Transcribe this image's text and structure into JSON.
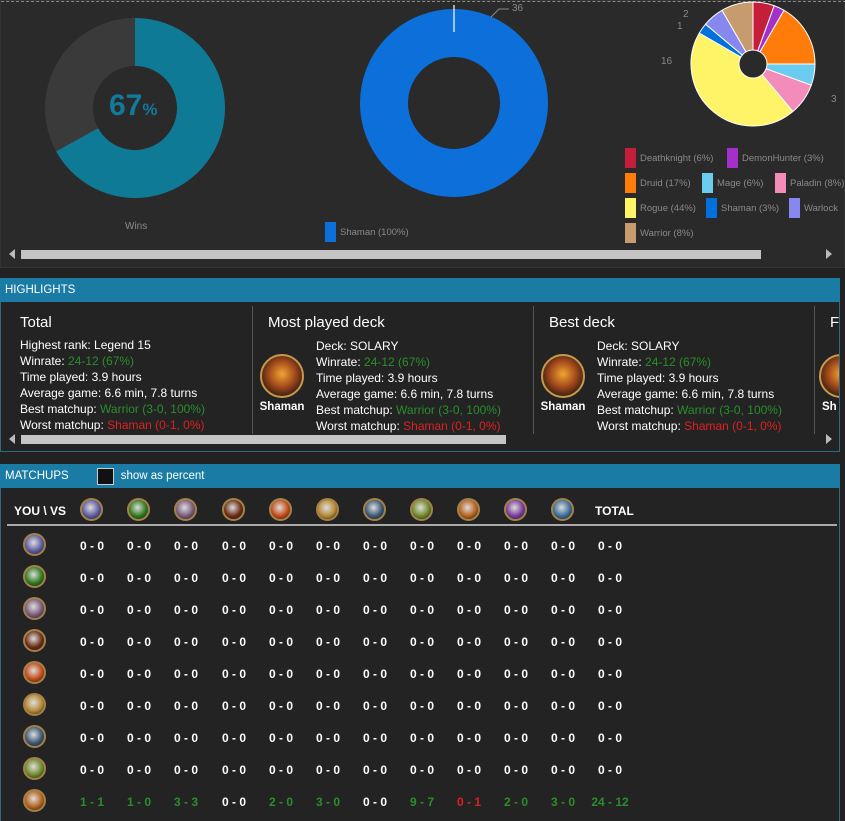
{
  "charts": {
    "wins_donut": {
      "percent_value": "67",
      "percent_sign": "%",
      "fill_fraction": 0.67,
      "legend_label": "Wins",
      "color_win": "#0e7a96",
      "color_loss": "#3a3a3a"
    },
    "deck_donut": {
      "count_label": "36",
      "legend_label": "Shaman (100%)",
      "color": "#0d6fd9"
    },
    "class_pie": {
      "slice_labels": [
        "2",
        "1",
        "16",
        "3"
      ],
      "legend": [
        {
          "label": "Deathknight (6%)",
          "color": "#c41e3a"
        },
        {
          "label": "DemonHunter (3%)",
          "color": "#a330c9"
        },
        {
          "label": "Druid (17%)",
          "color": "#ff7c0a"
        },
        {
          "label": "Mage (6%)",
          "color": "#69ccf0"
        },
        {
          "label": "Paladin (8%)",
          "color": "#f48cba"
        },
        {
          "label": "Rogue (44%)",
          "color": "#fff468"
        },
        {
          "label": "Shaman (3%)",
          "color": "#0070dd"
        },
        {
          "label": "Warlock",
          "color": "#8788ee"
        },
        {
          "label": "Warrior (8%)",
          "color": "#c69b6d"
        }
      ]
    }
  },
  "highlights": {
    "header": "HIGHLIGHTS",
    "total": {
      "title": "Total",
      "rank_label": "Highest rank: ",
      "rank_value": "Legend 15",
      "winrate_label": "Winrate: ",
      "winrate_value": "24-12 (67%)",
      "time_label": "Time played: ",
      "time_value": "3.9 hours",
      "avg_label": "Average game: ",
      "avg_value": "6.6 min, 7.8 turns",
      "best_label": "Best matchup: ",
      "best_value": "Warrior (3-0, 100%)",
      "worst_label": "Worst matchup: ",
      "worst_value": "Shaman (0-1, 0%)"
    },
    "most_played": {
      "title": "Most played deck",
      "class_name": "Shaman",
      "deck_label": "Deck: ",
      "deck_value": "SOLARY",
      "winrate_label": "Winrate: ",
      "winrate_value": "24-12 (67%)",
      "time_label": "Time played: ",
      "time_value": "3.9 hours",
      "avg_label": "Average game: ",
      "avg_value": "6.6 min, 7.8 turns",
      "best_label": "Best matchup: ",
      "best_value": "Warrior (3-0, 100%)",
      "worst_label": "Worst matchup: ",
      "worst_value": "Shaman (0-1, 0%)"
    },
    "best_deck": {
      "title": "Best deck",
      "class_name": "Shaman",
      "deck_label": "Deck: ",
      "deck_value": "SOLARY",
      "winrate_label": "Winrate: ",
      "winrate_value": "24-12 (67%)",
      "time_label": "Time played: ",
      "time_value": "3.9 hours",
      "avg_label": "Average game: ",
      "avg_value": "6.6 min, 7.8 turns",
      "best_label": "Best matchup: ",
      "best_value": "Warrior (3-0, 100%)",
      "worst_label": "Worst matchup: ",
      "worst_value": "Shaman (0-1, 0%)"
    },
    "cut_column": {
      "title": "F",
      "class_name": "Sh"
    }
  },
  "matchups": {
    "header": "MATCHUPS",
    "show_as_percent": "show as percent",
    "corner_label": "YOU \\ VS",
    "total_label": "TOTAL",
    "class_icons": [
      {
        "name": "demonhunter-icon",
        "color": "#5c5b9e"
      },
      {
        "name": "druid-icon",
        "color": "#2f7a1e"
      },
      {
        "name": "hunter-icon",
        "color": "#7a5b7a"
      },
      {
        "name": "mage-icon",
        "color": "#6b2d14"
      },
      {
        "name": "paladin-icon",
        "color": "#c44b18"
      },
      {
        "name": "priest-icon",
        "color": "#b68b36"
      },
      {
        "name": "rogue-icon",
        "color": "#3a5874"
      },
      {
        "name": "shaman-icon",
        "color": "#6d8a2a"
      },
      {
        "name": "warlock-icon",
        "color": "#b5621c"
      },
      {
        "name": "warrior-icon",
        "color": "#7a3a9a"
      },
      {
        "name": "deathknight-icon",
        "color": "#3a6c96"
      }
    ],
    "row_icons": [
      {
        "name": "demonhunter-icon",
        "color": "#5c5b9e"
      },
      {
        "name": "druid-icon",
        "color": "#2f7a1e"
      },
      {
        "name": "hunter-icon",
        "color": "#7a5b7a"
      },
      {
        "name": "mage-icon",
        "color": "#6b2d14"
      },
      {
        "name": "paladin-icon",
        "color": "#c44b18"
      },
      {
        "name": "priest-icon",
        "color": "#b68b36"
      },
      {
        "name": "rogue-icon",
        "color": "#3a5874"
      },
      {
        "name": "shaman-icon",
        "color": "#6d8a2a"
      },
      {
        "name": "warlock-icon",
        "color": "#b5621c"
      }
    ],
    "rows": [
      [
        "0 - 0",
        "0 - 0",
        "0 - 0",
        "0 - 0",
        "0 - 0",
        "0 - 0",
        "0 - 0",
        "0 - 0",
        "0 - 0",
        "0 - 0",
        "0 - 0",
        "0 - 0"
      ],
      [
        "0 - 0",
        "0 - 0",
        "0 - 0",
        "0 - 0",
        "0 - 0",
        "0 - 0",
        "0 - 0",
        "0 - 0",
        "0 - 0",
        "0 - 0",
        "0 - 0",
        "0 - 0"
      ],
      [
        "0 - 0",
        "0 - 0",
        "0 - 0",
        "0 - 0",
        "0 - 0",
        "0 - 0",
        "0 - 0",
        "0 - 0",
        "0 - 0",
        "0 - 0",
        "0 - 0",
        "0 - 0"
      ],
      [
        "0 - 0",
        "0 - 0",
        "0 - 0",
        "0 - 0",
        "0 - 0",
        "0 - 0",
        "0 - 0",
        "0 - 0",
        "0 - 0",
        "0 - 0",
        "0 - 0",
        "0 - 0"
      ],
      [
        "0 - 0",
        "0 - 0",
        "0 - 0",
        "0 - 0",
        "0 - 0",
        "0 - 0",
        "0 - 0",
        "0 - 0",
        "0 - 0",
        "0 - 0",
        "0 - 0",
        "0 - 0"
      ],
      [
        "0 - 0",
        "0 - 0",
        "0 - 0",
        "0 - 0",
        "0 - 0",
        "0 - 0",
        "0 - 0",
        "0 - 0",
        "0 - 0",
        "0 - 0",
        "0 - 0",
        "0 - 0"
      ],
      [
        "0 - 0",
        "0 - 0",
        "0 - 0",
        "0 - 0",
        "0 - 0",
        "0 - 0",
        "0 - 0",
        "0 - 0",
        "0 - 0",
        "0 - 0",
        "0 - 0",
        "0 - 0"
      ],
      [
        "0 - 0",
        "0 - 0",
        "0 - 0",
        "0 - 0",
        "0 - 0",
        "0 - 0",
        "0 - 0",
        "0 - 0",
        "0 - 0",
        "0 - 0",
        "0 - 0",
        "0 - 0"
      ],
      [
        "1 - 1",
        "1 - 0",
        "3 - 3",
        "0 - 0",
        "2 - 0",
        "3 - 0",
        "0 - 0",
        "9 - 7",
        "0 - 1",
        "2 - 0",
        "3 - 0",
        "24 - 12"
      ]
    ],
    "row_styles": [
      [],
      [],
      [],
      [],
      [],
      [],
      [],
      [],
      [
        "green",
        "green",
        "green",
        "",
        "green",
        "green",
        "",
        "green",
        "red",
        "green",
        "green",
        "green"
      ]
    ]
  }
}
